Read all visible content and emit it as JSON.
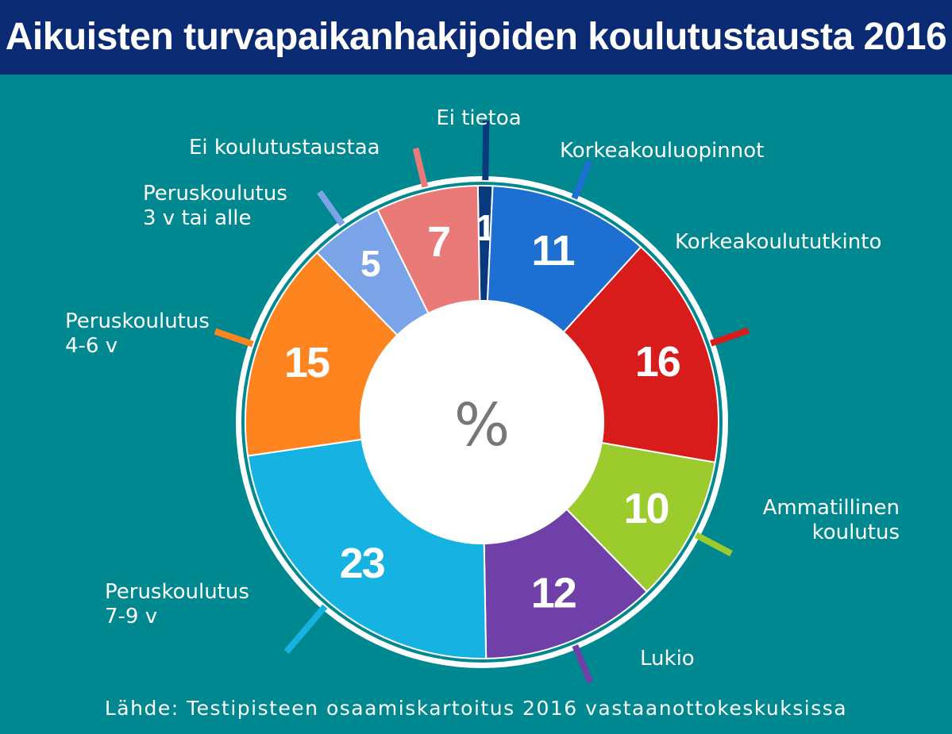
{
  "title": "Aikuisten turvapaikanhakijoiden koulutustausta 2016",
  "source": "Lähde: Testipisteen osaamiskartoitus 2016 vastaanottokeskuksissa",
  "chart_data": {
    "type": "pie",
    "center_label": "%",
    "slices": [
      {
        "label": [
          "Ei tietoa"
        ],
        "value": 1,
        "color": "#0a3a7e"
      },
      {
        "label": [
          "Korkeakouluopinnot"
        ],
        "value": 11,
        "color": "#1e6fd2"
      },
      {
        "label": [
          "Korkeakoulututkinto"
        ],
        "value": 16,
        "color": "#d81c1c"
      },
      {
        "label": [
          "Ammatillinen",
          "koulutus"
        ],
        "value": 10,
        "color": "#9bcb2c"
      },
      {
        "label": [
          "Lukio"
        ],
        "value": 12,
        "color": "#6e40a8"
      },
      {
        "label": [
          "Peruskoulutus",
          "7-9 v"
        ],
        "value": 23,
        "color": "#16b3e2"
      },
      {
        "label": [
          "Peruskoulutus",
          "4-6 v"
        ],
        "value": 15,
        "color": "#fd841e"
      },
      {
        "label": [
          "Peruskoulutus",
          "3 v tai alle"
        ],
        "value": 5,
        "color": "#7ba3e8"
      },
      {
        "label": [
          "Ei koulutustaustaa"
        ],
        "value": 7,
        "color": "#ea7a78"
      }
    ]
  }
}
